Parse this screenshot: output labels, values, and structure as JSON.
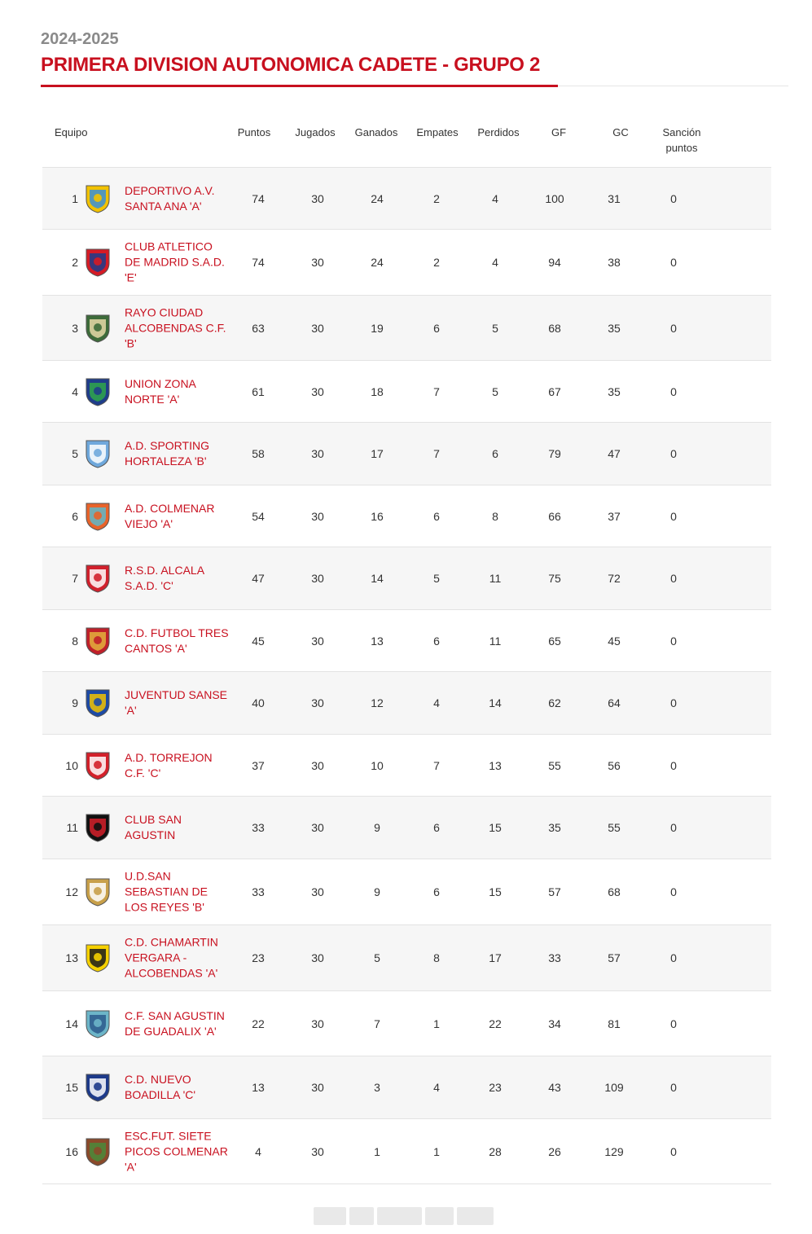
{
  "season": "2024-2025",
  "competition": "PRIMERA DIVISION AUTONOMICA CADETE - GRUPO 2",
  "colors": {
    "accent": "#c8101f",
    "text": "#333333",
    "muted": "#8a8a8a"
  },
  "headers": {
    "team": "Equipo",
    "points": "Puntos",
    "played": "Jugados",
    "won": "Ganados",
    "drawn": "Empates",
    "lost": "Perdidos",
    "gf": "GF",
    "gc": "GC",
    "sanction_1": "Sanción",
    "sanction_2": "puntos"
  },
  "rows": [
    {
      "pos": "1",
      "name": "DEPORTIVO A.V. SANTA ANA 'A'",
      "pts": "74",
      "j": "30",
      "g": "24",
      "e": "2",
      "p": "4",
      "gf": "100",
      "gc": "31",
      "s": "0",
      "crest": "santa-ana-crest-icon",
      "c1": "#f2c200",
      "c2": "#3a8fd8"
    },
    {
      "pos": "2",
      "name": "CLUB ATLETICO DE MADRID S.A.D. 'E'",
      "pts": "74",
      "j": "30",
      "g": "24",
      "e": "2",
      "p": "4",
      "gf": "94",
      "gc": "38",
      "s": "0",
      "crest": "atletico-crest-icon",
      "c1": "#d51b25",
      "c2": "#1c3c8c"
    },
    {
      "pos": "3",
      "name": "RAYO CIUDAD ALCOBENDAS C.F. 'B'",
      "pts": "63",
      "j": "30",
      "g": "19",
      "e": "6",
      "p": "5",
      "gf": "68",
      "gc": "35",
      "s": "0",
      "crest": "rayo-alcobendas-crest-icon",
      "c1": "#3d6b3a",
      "c2": "#e6d9a8"
    },
    {
      "pos": "4",
      "name": "UNION ZONA NORTE 'A'",
      "pts": "61",
      "j": "30",
      "g": "18",
      "e": "7",
      "p": "5",
      "gf": "67",
      "gc": "35",
      "s": "0",
      "crest": "zona-norte-crest-icon",
      "c1": "#1f3d8a",
      "c2": "#2fa64a"
    },
    {
      "pos": "5",
      "name": "A.D. SPORTING HORTALEZA 'B'",
      "pts": "58",
      "j": "30",
      "g": "17",
      "e": "7",
      "p": "6",
      "gf": "79",
      "gc": "47",
      "s": "0",
      "crest": "hortaleza-crest-icon",
      "c1": "#6fa8dc",
      "c2": "#ffffff"
    },
    {
      "pos": "6",
      "name": "A.D. COLMENAR VIEJO 'A'",
      "pts": "54",
      "j": "30",
      "g": "16",
      "e": "6",
      "p": "8",
      "gf": "66",
      "gc": "37",
      "s": "0",
      "crest": "colmenar-viejo-crest-icon",
      "c1": "#e8632a",
      "c2": "#5fb7c9"
    },
    {
      "pos": "7",
      "name": "R.S.D. ALCALA S.A.D. 'C'",
      "pts": "47",
      "j": "30",
      "g": "14",
      "e": "5",
      "p": "11",
      "gf": "75",
      "gc": "72",
      "s": "0",
      "crest": "alcala-crest-icon",
      "c1": "#d1202c",
      "c2": "#ffffff"
    },
    {
      "pos": "8",
      "name": "C.D. FUTBOL TRES CANTOS 'A'",
      "pts": "45",
      "j": "30",
      "g": "13",
      "e": "6",
      "p": "11",
      "gf": "65",
      "gc": "45",
      "s": "0",
      "crest": "tres-cantos-crest-icon",
      "c1": "#c0202a",
      "c2": "#e3b23c"
    },
    {
      "pos": "9",
      "name": "JUVENTUD SANSE 'A'",
      "pts": "40",
      "j": "30",
      "g": "12",
      "e": "4",
      "p": "14",
      "gf": "62",
      "gc": "64",
      "s": "0",
      "crest": "sanse-crest-icon",
      "c1": "#1d4aa5",
      "c2": "#f2c200"
    },
    {
      "pos": "10",
      "name": "A.D. TORREJON C.F. 'C'",
      "pts": "37",
      "j": "30",
      "g": "10",
      "e": "7",
      "p": "13",
      "gf": "55",
      "gc": "56",
      "s": "0",
      "crest": "torrejon-crest-icon",
      "c1": "#d3202a",
      "c2": "#ffffff"
    },
    {
      "pos": "11",
      "name": "CLUB SAN AGUSTIN",
      "pts": "33",
      "j": "30",
      "g": "9",
      "e": "6",
      "p": "15",
      "gf": "35",
      "gc": "55",
      "s": "0",
      "crest": "san-agustin-crest-icon",
      "c1": "#111111",
      "c2": "#d3202a"
    },
    {
      "pos": "12",
      "name": "U.D.SAN SEBASTIAN DE LOS REYES 'B'",
      "pts": "33",
      "j": "30",
      "g": "9",
      "e": "6",
      "p": "15",
      "gf": "57",
      "gc": "68",
      "s": "0",
      "crest": "san-sebastian-crest-icon",
      "c1": "#c8a04a",
      "c2": "#ffffff"
    },
    {
      "pos": "13",
      "name": "C.D. CHAMARTIN VERGARA - ALCOBENDAS 'A'",
      "pts": "23",
      "j": "30",
      "g": "5",
      "e": "8",
      "p": "17",
      "gf": "33",
      "gc": "57",
      "s": "0",
      "crest": "chamartin-vergara-crest-icon",
      "c1": "#f5d000",
      "c2": "#1a1a1a"
    },
    {
      "pos": "14",
      "name": "C.F. SAN AGUSTIN DE GUADALIX 'A'",
      "pts": "22",
      "j": "30",
      "g": "7",
      "e": "1",
      "p": "22",
      "gf": "34",
      "gc": "81",
      "s": "0",
      "crest": "guadalix-crest-icon",
      "c1": "#6cb5c8",
      "c2": "#2c5a8c"
    },
    {
      "pos": "15",
      "name": "C.D. NUEVO BOADILLA 'C'",
      "pts": "13",
      "j": "30",
      "g": "3",
      "e": "4",
      "p": "23",
      "gf": "43",
      "gc": "109",
      "s": "0",
      "crest": "nuevo-boadilla-crest-icon",
      "c1": "#1d3a8a",
      "c2": "#ffffff"
    },
    {
      "pos": "16",
      "name": "ESC.FUT. SIETE PICOS COLMENAR 'A'",
      "pts": "4",
      "j": "30",
      "g": "1",
      "e": "1",
      "p": "28",
      "gf": "26",
      "gc": "129",
      "s": "0",
      "crest": "siete-picos-crest-icon",
      "c1": "#8a4a2a",
      "c2": "#4a8a3a"
    }
  ]
}
